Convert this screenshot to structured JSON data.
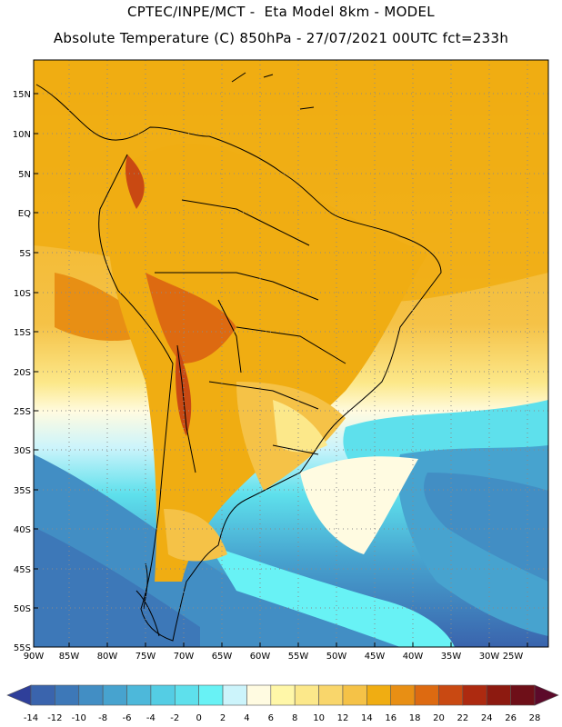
{
  "header": {
    "line1": "CPTEC/INPE/MCT -  Eta Model 8km - MODEL",
    "line2": "Absolute Temperature (C) 850hPa - 27/07/2021 00UTC fct=233h"
  },
  "map": {
    "lat_labels": [
      "15N",
      "10N",
      "5N",
      "EQ",
      "5S",
      "10S",
      "15S",
      "20S",
      "25S",
      "30S",
      "35S",
      "40S",
      "45S",
      "50S",
      "55S"
    ],
    "lon_labels": [
      "90W",
      "85W",
      "80W",
      "75W",
      "70W",
      "65W",
      "60W",
      "55W",
      "50W",
      "45W",
      "40W",
      "35W",
      "30W",
      "25W"
    ],
    "lat_range": [
      -55,
      19
    ],
    "lon_range": [
      -90,
      -23
    ],
    "grid": "dotted"
  },
  "colorbar": {
    "ticks": [
      "-14",
      "-12",
      "-10",
      "-8",
      "-6",
      "-4",
      "-2",
      "0",
      "2",
      "4",
      "6",
      "8",
      "10",
      "12",
      "14",
      "16",
      "18",
      "20",
      "22",
      "24",
      "26",
      "28"
    ],
    "colors": [
      "#2f3f9a",
      "#3a64ad",
      "#3d78b8",
      "#428ec4",
      "#47a3cf",
      "#4db8da",
      "#54cde4",
      "#5ee0ec",
      "#68f2f5",
      "#ccf4fb",
      "#fffbe1",
      "#fff7a8",
      "#fce88a",
      "#f9d66b",
      "#f5c247",
      "#f0ad12",
      "#e88f14",
      "#dd6a11",
      "#c94912",
      "#ad2a10",
      "#8d1a10",
      "#6e0f18",
      "#5c0a2a"
    ]
  }
}
